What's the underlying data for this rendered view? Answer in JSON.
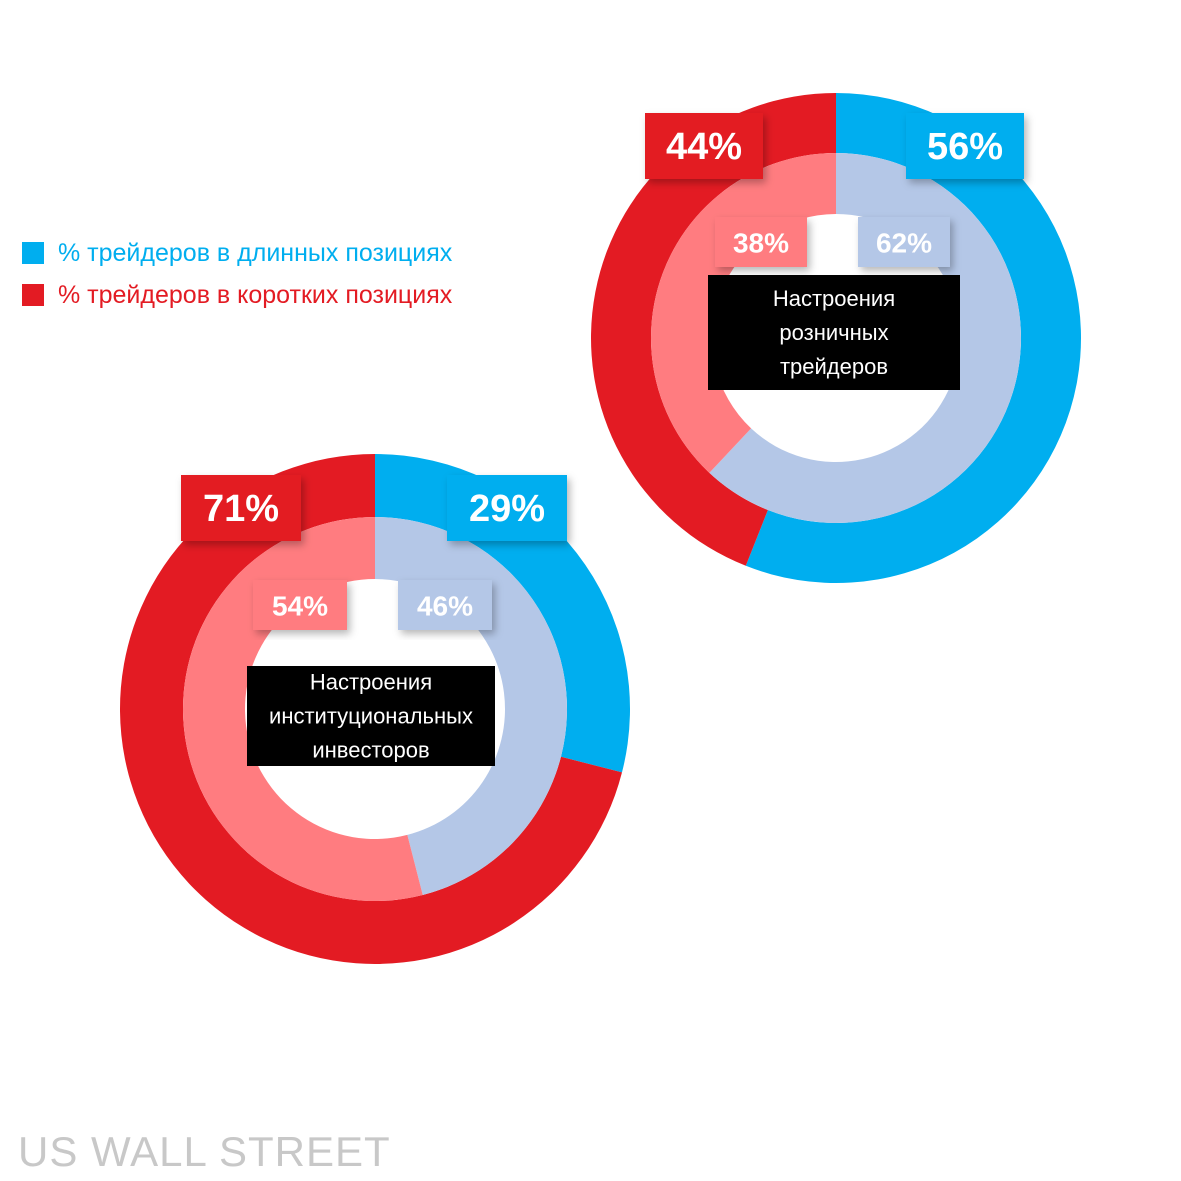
{
  "legend": {
    "long_label": "% трейдеров в длинных позициях",
    "short_label": "% трейдеров в коротких позициях"
  },
  "watermark": "US WALL STREET",
  "colors": {
    "long_outer": "#00aeef",
    "long_inner": "#b4c7e7",
    "short_outer": "#e31b23",
    "short_inner": "#ff7c80"
  },
  "chart_data": [
    {
      "type": "pie",
      "variant": "nested-donut",
      "title": "Настроения розничных трейдеров",
      "title_lines": [
        "Настроения",
        "розничных",
        "трейдеров"
      ],
      "categories": [
        "% трейдеров в длинных позициях",
        "% трейдеров в коротких позициях"
      ],
      "series": [
        {
          "ring": "outer",
          "values": [
            56,
            44
          ],
          "labels": [
            "56%",
            "44%"
          ]
        },
        {
          "ring": "inner",
          "values": [
            62,
            38
          ],
          "labels": [
            "62%",
            "38%"
          ]
        }
      ]
    },
    {
      "type": "pie",
      "variant": "nested-donut",
      "title": "Настроения институциональных инвесторов",
      "title_lines": [
        "Настроения",
        "институциональных",
        "инвесторов"
      ],
      "categories": [
        "% трейдеров в длинных позициях",
        "% трейдеров в коротких позициях"
      ],
      "series": [
        {
          "ring": "outer",
          "values": [
            29,
            71
          ],
          "labels": [
            "29%",
            "71%"
          ]
        },
        {
          "ring": "inner",
          "values": [
            46,
            54
          ],
          "labels": [
            "46%",
            "54%"
          ]
        }
      ]
    }
  ]
}
